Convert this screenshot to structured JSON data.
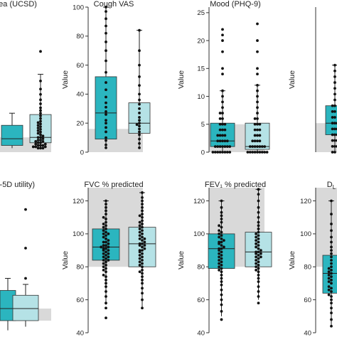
{
  "figure": {
    "colors": {
      "box_dark": "#2bb5bf",
      "box_light": "#b5e2e6",
      "reference_band": "#d9d9d9",
      "points": "#111111",
      "axis": "#333333"
    }
  },
  "chart_data": [
    {
      "id": "dyspnoea",
      "type": "box",
      "title": "oea (UCSD)",
      "ylabel": "",
      "ylim": [
        -3,
        105
      ],
      "yticks": [],
      "ytick_labels": [],
      "reference_band": [
        -3,
        8
      ],
      "boxes": [
        {
          "group": "1",
          "color": "dark",
          "q1": 2,
          "median": 7,
          "q3": 17,
          "whisker_low": 0,
          "whisker_high": 26
        },
        {
          "group": "2",
          "color": "light",
          "q1": 4,
          "median": 8,
          "q3": 25,
          "whisker_low": 0,
          "whisker_high": 55,
          "points": [
            0,
            0,
            0,
            1,
            1,
            1,
            2,
            2,
            2,
            3,
            3,
            4,
            4,
            5,
            5,
            6,
            6,
            7,
            8,
            8,
            9,
            10,
            11,
            12,
            13,
            14,
            15,
            16,
            17,
            18,
            19,
            20,
            22,
            24,
            26,
            28,
            30,
            33,
            36,
            40,
            44,
            50,
            72
          ]
        }
      ]
    },
    {
      "id": "cough",
      "type": "box",
      "title": "Cough VAS",
      "ylabel": "Value",
      "ylim": [
        0,
        100
      ],
      "yticks": [
        0,
        20,
        40,
        60,
        80,
        100
      ],
      "ytick_labels": [
        "0",
        "20",
        "40",
        "60",
        "80",
        "100"
      ],
      "reference_band": [
        0,
        16
      ],
      "boxes": [
        {
          "group": "1",
          "color": "dark",
          "q1": 9,
          "median": 27,
          "q3": 52,
          "whisker_low": 3,
          "whisker_high": 100,
          "points": [
            3,
            5,
            8,
            10,
            14,
            17,
            20,
            22,
            26,
            28,
            31,
            34,
            38,
            43,
            48,
            55,
            63,
            70,
            76,
            82,
            87,
            92,
            97,
            100
          ]
        },
        {
          "group": "2",
          "color": "light",
          "q1": 13,
          "median": 20,
          "q3": 34,
          "whisker_low": 3,
          "whisker_high": 84,
          "points": [
            3,
            6,
            9,
            12,
            14,
            16,
            18,
            19,
            20,
            22,
            24,
            27,
            30,
            33,
            36,
            40,
            46,
            52,
            60,
            70,
            84
          ]
        }
      ]
    },
    {
      "id": "mood",
      "type": "box",
      "title": "Mood (PHQ-9)",
      "ylabel": "Value",
      "ylim": [
        0,
        26
      ],
      "yticks": [
        0,
        5,
        10,
        15,
        20,
        25
      ],
      "ytick_labels": [
        "0",
        "5",
        "10",
        "15",
        "20",
        "25"
      ],
      "reference_band": [
        0,
        5
      ],
      "boxes": [
        {
          "group": "1",
          "color": "dark",
          "q1": 1,
          "median": 2,
          "q3": 5.2,
          "whisker_low": 0,
          "whisker_high": 11,
          "points": [
            0,
            0,
            0,
            0,
            0,
            0,
            0,
            0,
            1,
            1,
            1,
            1,
            1,
            1,
            1,
            2,
            2,
            2,
            2,
            2,
            3,
            3,
            3,
            3,
            4,
            4,
            4,
            5,
            5,
            5,
            6,
            6,
            7,
            7,
            8,
            9,
            10,
            11,
            14,
            15,
            18,
            20,
            21,
            22
          ]
        },
        {
          "group": "2",
          "color": "light",
          "q1": 0.5,
          "median": 1,
          "q3": 5.2,
          "whisker_low": 0,
          "whisker_high": 12,
          "points": [
            0,
            0,
            0,
            0,
            0,
            0,
            0,
            0,
            0,
            1,
            1,
            1,
            1,
            1,
            1,
            1,
            2,
            2,
            2,
            2,
            3,
            3,
            3,
            4,
            4,
            4,
            5,
            5,
            5,
            6,
            6,
            7,
            8,
            9,
            10,
            11,
            12,
            14,
            15,
            18,
            20,
            23
          ]
        }
      ]
    },
    {
      "id": "panel4",
      "type": "box",
      "title": "",
      "ylabel": "Value",
      "ylim": [
        0,
        25
      ],
      "yticks": [],
      "ytick_labels": [],
      "reference_band": [
        0,
        5
      ],
      "boxes": [
        {
          "group": "1",
          "color": "dark",
          "q1": 3,
          "median": 5,
          "q3": 8,
          "whisker_low": 0,
          "whisker_high": 15,
          "points": [
            0,
            0,
            1,
            1,
            1,
            2,
            2,
            2,
            3,
            3,
            3,
            4,
            4,
            4,
            5,
            5,
            5,
            6,
            6,
            7,
            7,
            8,
            8,
            9,
            10,
            11,
            12,
            13,
            14,
            15
          ]
        }
      ]
    },
    {
      "id": "eq5d",
      "type": "box",
      "title": "Q-5D utility)",
      "ylabel": "",
      "ylim": [
        0,
        1.2
      ],
      "yticks": [],
      "ytick_labels": [],
      "reference_band": [
        0.1,
        0.2
      ],
      "boxes": [
        {
          "group": "1",
          "color": "dark",
          "q1": 0.1,
          "median": 0.2,
          "q3": 0.35,
          "whisker_low": 0.02,
          "whisker_high": 0.45
        },
        {
          "group": "2",
          "color": "light",
          "q1": 0.1,
          "median": 0.2,
          "q3": 0.31,
          "whisker_low": 0.05,
          "whisker_high": 0.4,
          "points": [
            0.45,
            0.7,
            1.02
          ]
        }
      ]
    },
    {
      "id": "fvc",
      "type": "box",
      "title": "FVC % predicted",
      "ylabel": "Value",
      "ylim": [
        40,
        128
      ],
      "yticks": [
        40,
        60,
        80,
        100,
        120
      ],
      "ytick_labels": [
        "40",
        "60",
        "80",
        "100",
        "120"
      ],
      "reference_band": [
        80,
        128
      ],
      "boxes": [
        {
          "group": "1",
          "color": "dark",
          "q1": 84,
          "median": 92,
          "q3": 103,
          "whisker_low": 57,
          "whisker_high": 120,
          "points": [
            49,
            55,
            58,
            62,
            65,
            68,
            70,
            72,
            74,
            75,
            77,
            78,
            79,
            80,
            81,
            82,
            83,
            84,
            84,
            85,
            86,
            86,
            87,
            88,
            88,
            89,
            90,
            90,
            91,
            91,
            92,
            92,
            93,
            93,
            94,
            95,
            95,
            96,
            97,
            98,
            99,
            100,
            100,
            101,
            102,
            103,
            104,
            105,
            106,
            107,
            109,
            110,
            112,
            114,
            116,
            118,
            120
          ]
        },
        {
          "group": "2",
          "color": "light",
          "q1": 80,
          "median": 94,
          "q3": 104,
          "whisker_low": 55,
          "whisker_high": 125,
          "points": [
            55,
            60,
            64,
            67,
            70,
            72,
            74,
            76,
            77,
            78,
            80,
            81,
            82,
            83,
            84,
            85,
            86,
            87,
            88,
            89,
            90,
            90,
            91,
            92,
            93,
            93,
            94,
            94,
            95,
            96,
            97,
            97,
            98,
            99,
            100,
            101,
            102,
            103,
            104,
            105,
            106,
            107,
            108,
            110,
            111,
            112,
            114,
            116,
            118,
            120,
            122,
            125
          ]
        }
      ]
    },
    {
      "id": "fev1",
      "type": "box",
      "title": "FEV₁ % predicted",
      "ylabel": "Value",
      "ylim": [
        40,
        128
      ],
      "yticks": [
        40,
        60,
        80,
        100,
        120
      ],
      "ytick_labels": [
        "40",
        "60",
        "80",
        "100",
        "120"
      ],
      "reference_band": [
        80,
        128
      ],
      "boxes": [
        {
          "group": "1",
          "color": "dark",
          "q1": 79,
          "median": 91,
          "q3": 100,
          "whisker_low": 50,
          "whisker_high": 120,
          "points": [
            48,
            53,
            57,
            60,
            63,
            66,
            69,
            71,
            73,
            75,
            77,
            78,
            79,
            80,
            81,
            82,
            83,
            84,
            85,
            86,
            87,
            88,
            89,
            90,
            91,
            91,
            92,
            93,
            94,
            95,
            95,
            96,
            97,
            98,
            99,
            100,
            101,
            102,
            104,
            105,
            107,
            109,
            111,
            113,
            116,
            120
          ]
        },
        {
          "group": "2",
          "color": "light",
          "q1": 80,
          "median": 89,
          "q3": 101,
          "whisker_low": 60,
          "whisker_high": 127,
          "points": [
            58,
            62,
            65,
            68,
            71,
            73,
            75,
            77,
            78,
            79,
            80,
            81,
            82,
            83,
            84,
            85,
            86,
            86,
            87,
            88,
            88,
            89,
            89,
            90,
            91,
            92,
            93,
            94,
            95,
            96,
            97,
            98,
            99,
            100,
            101,
            103,
            105,
            107,
            110,
            113,
            116,
            120,
            124,
            127
          ]
        }
      ]
    },
    {
      "id": "dlco",
      "type": "box",
      "title": "D",
      "title_subscript": "L",
      "ylabel": "Value",
      "ylim": [
        40,
        128
      ],
      "yticks": [
        40,
        60,
        80,
        100,
        120
      ],
      "ytick_labels": [
        "40",
        "60",
        "80",
        "100",
        "120"
      ],
      "reference_band": [
        80,
        128
      ],
      "boxes": [
        {
          "group": "1",
          "color": "dark",
          "q1": 64,
          "median": 76,
          "q3": 87,
          "whisker_low": 44,
          "whisker_high": 120,
          "points": [
            44,
            48,
            52,
            55,
            58,
            60,
            62,
            63,
            65,
            66,
            67,
            68,
            70,
            71,
            72,
            73,
            74,
            75,
            76,
            77,
            78,
            79,
            80,
            82,
            84,
            86,
            88,
            90,
            92,
            95,
            98,
            102,
            106,
            112,
            120
          ]
        }
      ]
    }
  ]
}
